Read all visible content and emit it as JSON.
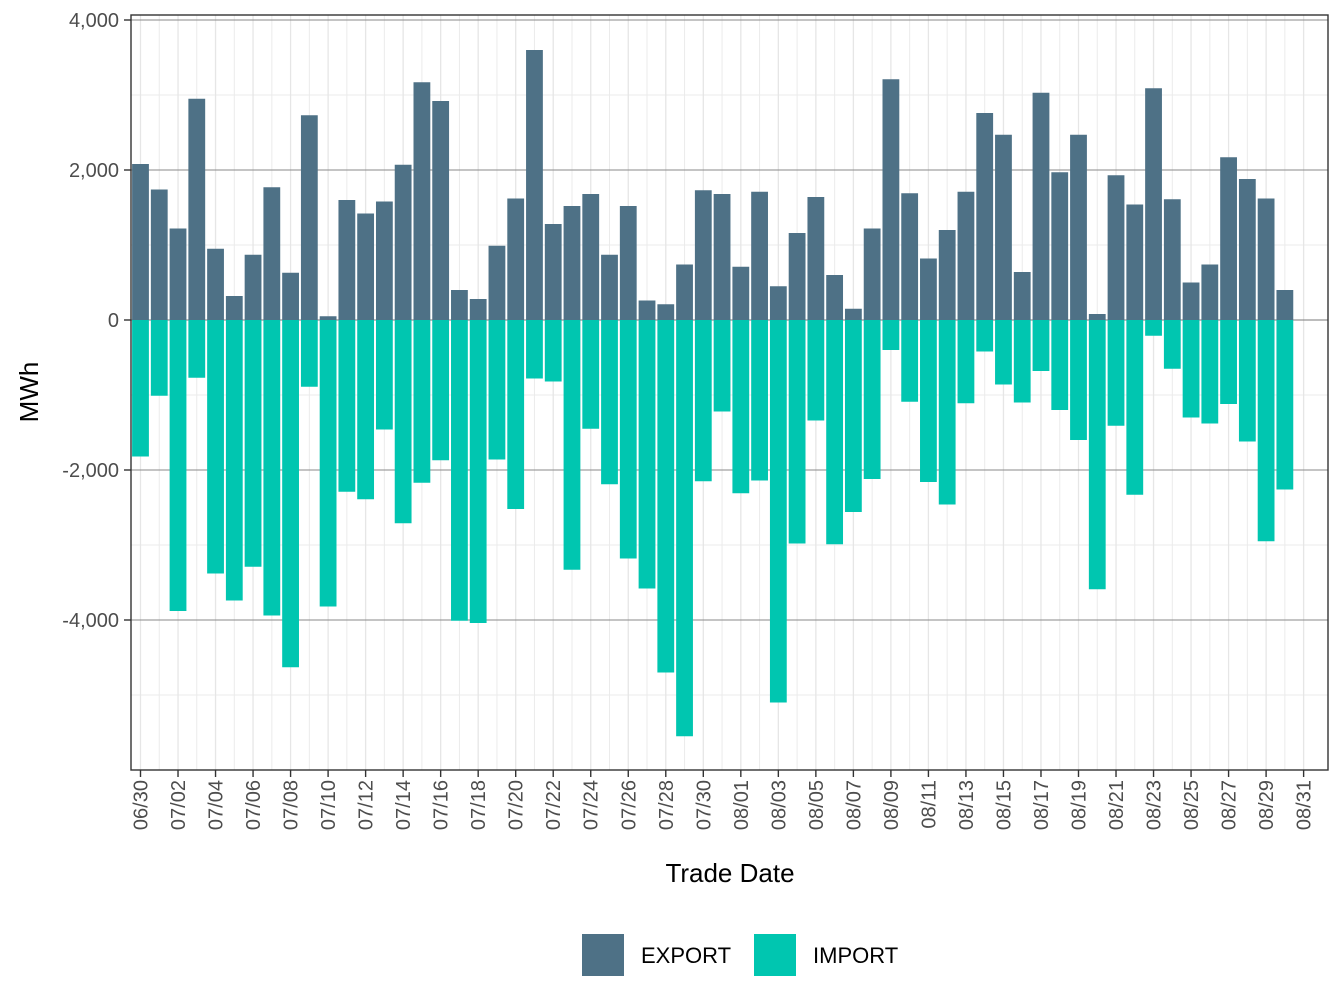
{
  "chart_data": {
    "type": "bar",
    "stacked": true,
    "title": "",
    "xlabel": "Trade Date",
    "ylabel": "MWh",
    "ylim": [
      -5800,
      4050
    ],
    "y_ticks": [
      4000,
      2000,
      0,
      -2000,
      -4000
    ],
    "y_tick_labels": [
      "4,000",
      "2,000",
      "0",
      "-2,000",
      "-4,000"
    ],
    "grid": true,
    "legend_position": "bottom",
    "colors": {
      "EXPORT": "#4e7186",
      "IMPORT": "#00c6b0"
    },
    "categories": [
      "06/30",
      "07/01",
      "07/02",
      "07/03",
      "07/04",
      "07/05",
      "07/06",
      "07/07",
      "07/08",
      "07/09",
      "07/10",
      "07/11",
      "07/12",
      "07/13",
      "07/14",
      "07/15",
      "07/16",
      "07/17",
      "07/18",
      "07/19",
      "07/20",
      "07/21",
      "07/22",
      "07/23",
      "07/24",
      "07/25",
      "07/26",
      "07/27",
      "07/28",
      "07/29",
      "07/30",
      "07/31",
      "08/01",
      "08/02",
      "08/03",
      "08/04",
      "08/05",
      "08/06",
      "08/07",
      "08/08",
      "08/09",
      "08/10",
      "08/11",
      "08/12",
      "08/13",
      "08/14",
      "08/15",
      "08/16",
      "08/17",
      "08/18",
      "08/19",
      "08/20",
      "08/21",
      "08/22",
      "08/23",
      "08/24",
      "08/25",
      "08/26",
      "08/27",
      "08/28",
      "08/29",
      "08/30",
      "08/31"
    ],
    "tick_labels": [
      "06/30",
      "07/02",
      "07/04",
      "07/06",
      "07/08",
      "07/10",
      "07/12",
      "07/14",
      "07/16",
      "07/18",
      "07/20",
      "07/22",
      "07/24",
      "07/26",
      "07/28",
      "07/30",
      "08/01",
      "08/03",
      "08/05",
      "08/07",
      "08/09",
      "08/11",
      "08/13",
      "08/15",
      "08/17",
      "08/19",
      "08/21",
      "08/23",
      "08/25",
      "08/27",
      "08/29",
      "08/31"
    ],
    "series": [
      {
        "name": "EXPORT",
        "values": [
          2080,
          1740,
          1220,
          2950,
          950,
          320,
          870,
          1770,
          630,
          2730,
          50,
          1600,
          1420,
          1580,
          2070,
          3170,
          2920,
          400,
          280,
          990,
          1620,
          3600,
          1280,
          1520,
          1680,
          870,
          1520,
          260,
          210,
          740,
          1730,
          1680,
          710,
          1710,
          450,
          1160,
          1640,
          600,
          150,
          1220,
          3210,
          1690,
          820,
          1200,
          1710,
          2760,
          2470,
          640,
          3030,
          1970,
          2470,
          80,
          1930,
          1540,
          3090,
          1610,
          500,
          740,
          2170,
          1880,
          1620,
          400,
          0
        ]
      },
      {
        "name": "IMPORT",
        "values": [
          -1820,
          -1010,
          -3880,
          -770,
          -3380,
          -3740,
          -3290,
          -3940,
          -4630,
          -890,
          -3820,
          -2290,
          -2390,
          -1460,
          -2710,
          -2170,
          -1870,
          -4010,
          -4040,
          -1860,
          -2520,
          -780,
          -820,
          -3330,
          -1450,
          -2190,
          -3180,
          -3580,
          -4700,
          -5550,
          -2150,
          -1220,
          -2310,
          -2140,
          -5100,
          -2980,
          -1340,
          -2990,
          -2560,
          -2120,
          -400,
          -1090,
          -2160,
          -2460,
          -1110,
          -420,
          -860,
          -1100,
          -680,
          -1200,
          -1600,
          -3590,
          -1410,
          -2330,
          -210,
          -650,
          -1300,
          -1380,
          -1120,
          -1620,
          -2950,
          -2260,
          0
        ]
      }
    ]
  }
}
